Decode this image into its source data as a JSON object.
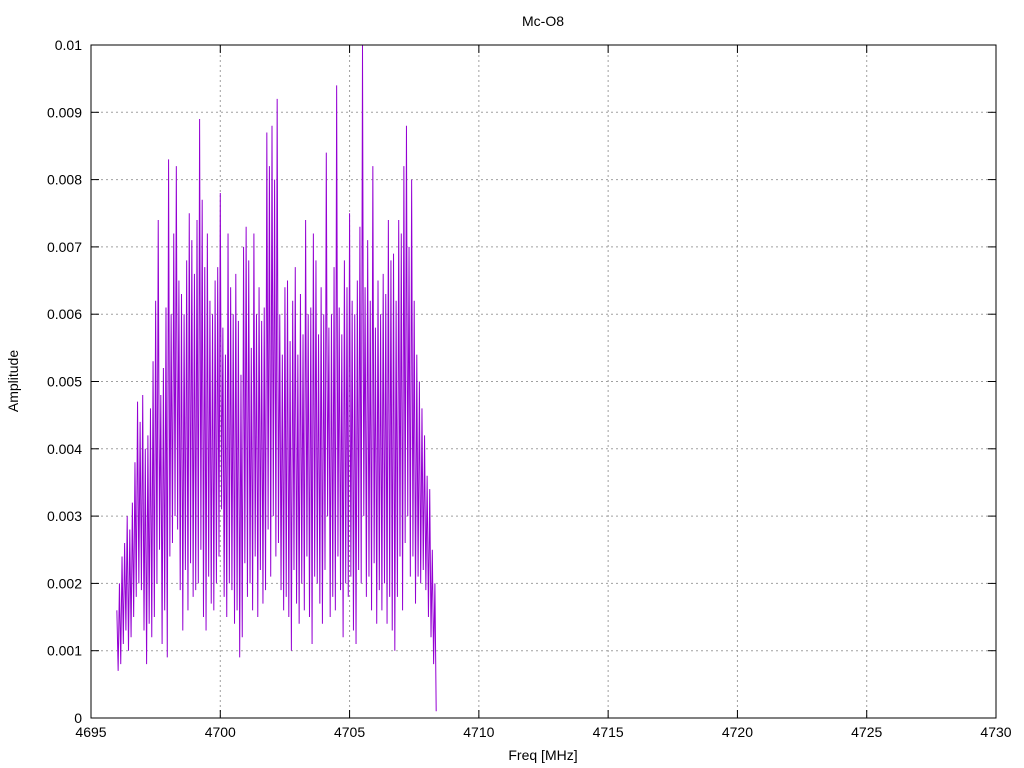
{
  "chart_data": {
    "type": "line",
    "title": "Mc-O8",
    "xlabel": "Freq [MHz]",
    "ylabel": "Amplitude",
    "xlim": [
      4695,
      4730
    ],
    "ylim": [
      0,
      0.01
    ],
    "x_ticks": [
      "4695",
      "4700",
      "4705",
      "4710",
      "4715",
      "4720",
      "4725",
      "4730"
    ],
    "y_ticks": [
      "0",
      "0.001",
      "0.002",
      "0.003",
      "0.004",
      "0.005",
      "0.006",
      "0.007",
      "0.008",
      "0.009",
      "0.01"
    ],
    "grid": true,
    "line_color": "#9400d3",
    "series": [
      {
        "x_start": 4696.0,
        "x_step": 0.05,
        "values": [
          0.0016,
          0.0007,
          0.002,
          0.0008,
          0.0024,
          0.0011,
          0.0026,
          0.0013,
          0.003,
          0.001,
          0.0028,
          0.0012,
          0.0032,
          0.0015,
          0.0038,
          0.0018,
          0.0047,
          0.002,
          0.0044,
          0.0019,
          0.0048,
          0.0013,
          0.004,
          0.0008,
          0.0042,
          0.0014,
          0.0046,
          0.0012,
          0.0053,
          0.0015,
          0.0062,
          0.002,
          0.0074,
          0.0025,
          0.0048,
          0.0011,
          0.0052,
          0.0016,
          0.0061,
          0.0009,
          0.0083,
          0.0024,
          0.006,
          0.0026,
          0.0072,
          0.003,
          0.0082,
          0.0028,
          0.0065,
          0.0019,
          0.0063,
          0.0013,
          0.006,
          0.0022,
          0.0068,
          0.0016,
          0.0075,
          0.0023,
          0.0071,
          0.0018,
          0.0066,
          0.0019,
          0.0074,
          0.002,
          0.0089,
          0.0025,
          0.0077,
          0.0015,
          0.0067,
          0.0013,
          0.0072,
          0.0021,
          0.0062,
          0.0017,
          0.006,
          0.0016,
          0.0065,
          0.002,
          0.0067,
          0.0024,
          0.0078,
          0.0031,
          0.0058,
          0.0018,
          0.0054,
          0.0015,
          0.0072,
          0.002,
          0.0064,
          0.0019,
          0.006,
          0.0014,
          0.0066,
          0.0016,
          0.0059,
          0.0009,
          0.0051,
          0.0012,
          0.007,
          0.0023,
          0.0073,
          0.0018,
          0.0068,
          0.002,
          0.0055,
          0.0016,
          0.0072,
          0.0024,
          0.006,
          0.0015,
          0.0064,
          0.0022,
          0.0059,
          0.0017,
          0.0061,
          0.0019,
          0.0087,
          0.0028,
          0.0082,
          0.0021,
          0.0088,
          0.003,
          0.008,
          0.0024,
          0.0092,
          0.0026,
          0.006,
          0.0019,
          0.0054,
          0.0016,
          0.0064,
          0.0018,
          0.0065,
          0.0015,
          0.0056,
          0.001,
          0.0062,
          0.0022,
          0.0067,
          0.0017,
          0.0054,
          0.0014,
          0.0063,
          0.002,
          0.0057,
          0.0016,
          0.0074,
          0.0024,
          0.006,
          0.0015,
          0.0061,
          0.0011,
          0.0072,
          0.0021,
          0.0068,
          0.002,
          0.0057,
          0.0017,
          0.0064,
          0.0014,
          0.006,
          0.0022,
          0.0084,
          0.003,
          0.0058,
          0.0015,
          0.006,
          0.0018,
          0.0067,
          0.0016,
          0.0094,
          0.0024,
          0.0061,
          0.0019,
          0.0057,
          0.0012,
          0.0068,
          0.002,
          0.0064,
          0.0018,
          0.0075,
          0.0021,
          0.0062,
          0.0013,
          0.006,
          0.0011,
          0.0065,
          0.0022,
          0.0073,
          0.002,
          0.01,
          0.003,
          0.0064,
          0.0018,
          0.0071,
          0.0021,
          0.0062,
          0.0016,
          0.0082,
          0.0023,
          0.0058,
          0.0014,
          0.0065,
          0.0019,
          0.006,
          0.0016,
          0.0066,
          0.002,
          0.0063,
          0.0014,
          0.0074,
          0.0018,
          0.0068,
          0.0013,
          0.0069,
          0.001,
          0.0062,
          0.0018,
          0.0074,
          0.0024,
          0.0072,
          0.0016,
          0.0082,
          0.0026,
          0.0088,
          0.003,
          0.007,
          0.0021,
          0.008,
          0.0024,
          0.0062,
          0.0017,
          0.0054,
          0.0021,
          0.005,
          0.002,
          0.0046,
          0.0022,
          0.0042,
          0.0019,
          0.0036,
          0.0015,
          0.0034,
          0.0012,
          0.0025,
          0.0008,
          0.002,
          0.0001
        ]
      }
    ]
  }
}
